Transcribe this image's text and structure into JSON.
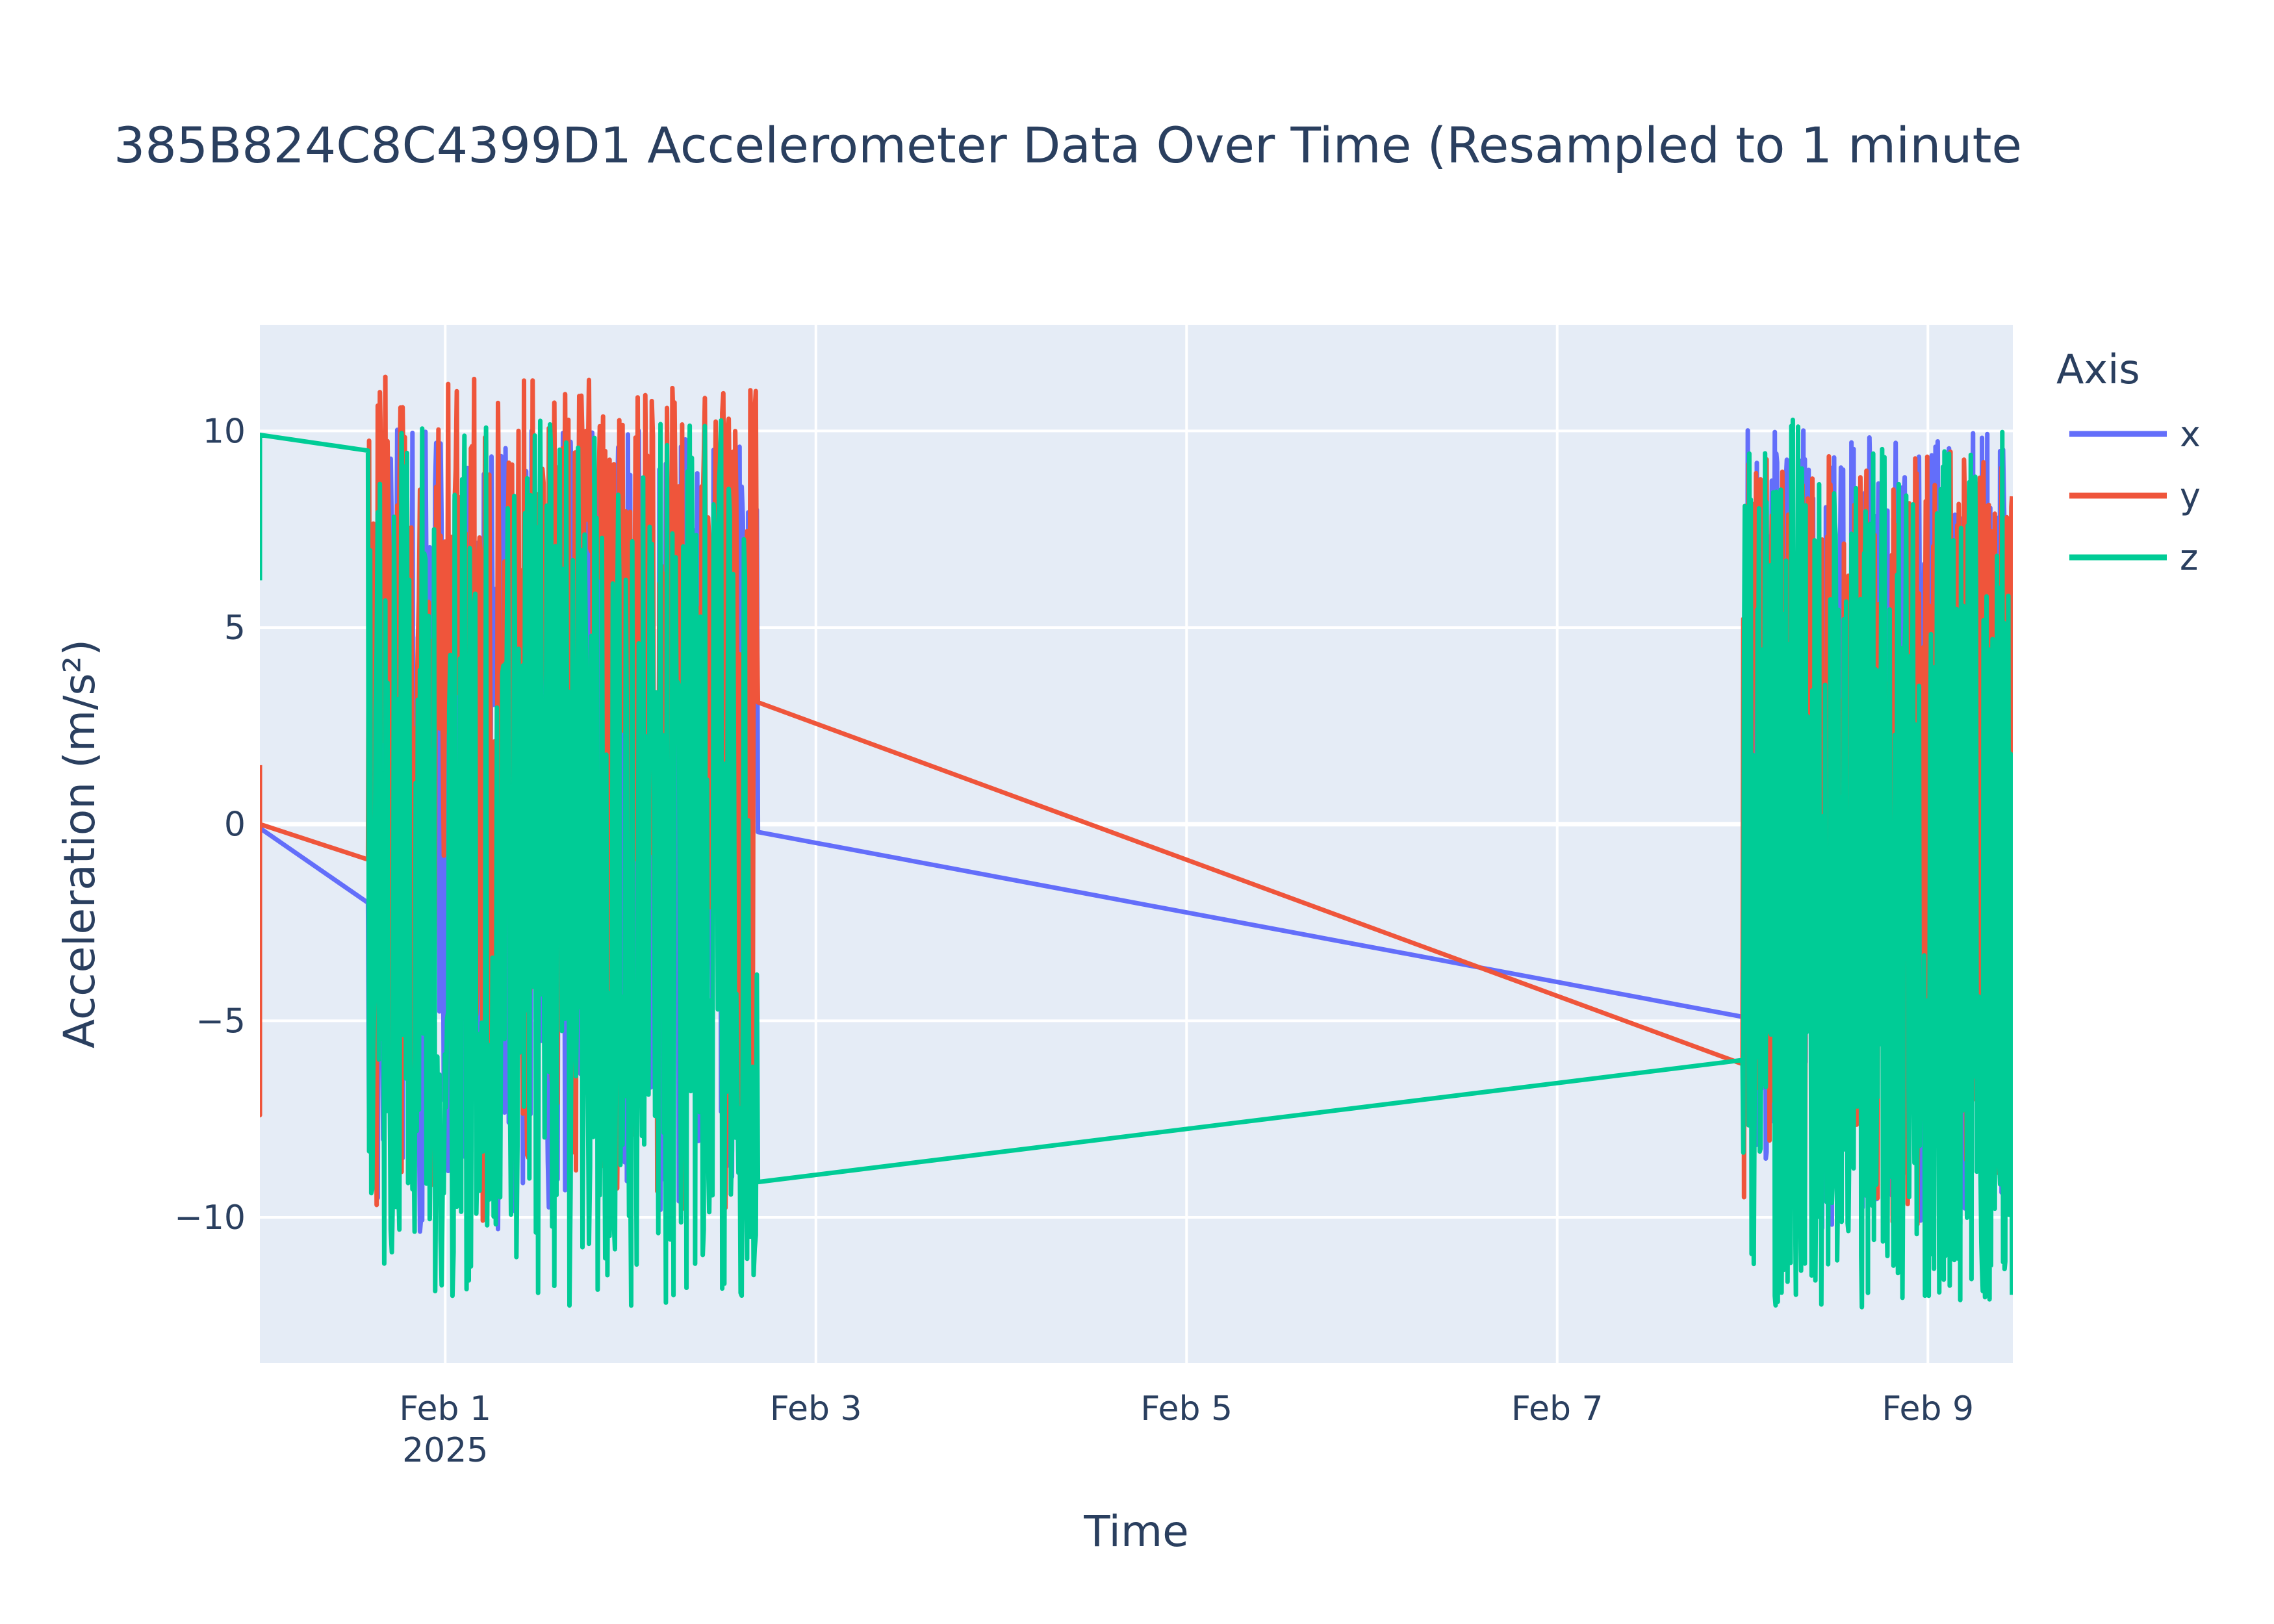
{
  "chart_data": {
    "type": "line",
    "title": "385B824C8C4399D1 Accelerometer Data Over Time (Resampled to 1 minute",
    "xlabel": "Time",
    "ylabel": "Acceleration (m/s²)",
    "x_axis_kind": "date",
    "xlim": [
      "2025-01-31T00:00",
      "2025-02-09T11:00"
    ],
    "ylim": [
      -13.7,
      12.7
    ],
    "grid": true,
    "x_ticks": [
      {
        "value": "2025-02-01T00:00",
        "label": "Feb 1",
        "sublabel": "2025"
      },
      {
        "value": "2025-02-03T00:00",
        "label": "Feb 3",
        "sublabel": ""
      },
      {
        "value": "2025-02-05T00:00",
        "label": "Feb 5",
        "sublabel": ""
      },
      {
        "value": "2025-02-07T00:00",
        "label": "Feb 7",
        "sublabel": ""
      },
      {
        "value": "2025-02-09T00:00",
        "label": "Feb 9",
        "sublabel": ""
      }
    ],
    "y_ticks": [
      {
        "value": 10,
        "label": "10"
      },
      {
        "value": 5,
        "label": "5"
      },
      {
        "value": 0,
        "label": "0"
      },
      {
        "value": -5,
        "label": "−5"
      },
      {
        "value": -10,
        "label": "−10"
      }
    ],
    "legend": {
      "title": "Axis",
      "position": "top-right"
    },
    "segments": [
      {
        "start": "2025-01-31T14:00",
        "end": "2025-02-02T16:30"
      },
      {
        "start": "2025-02-08T00:00",
        "end": "2025-02-09T11:00"
      }
    ],
    "series": [
      {
        "name": "x",
        "color": "#636efa",
        "start_values": [
          0.0,
          -0.1
        ],
        "burst_edges": [
          {
            "time": "2025-01-31T14:00",
            "value": -2.0
          },
          {
            "time": "2025-02-02T16:30",
            "value": -0.2
          },
          {
            "time": "2025-02-08T00:00",
            "value": -4.9
          }
        ],
        "burst_range": [
          -10.4,
          10.1
        ]
      },
      {
        "name": "y",
        "color": "#ef553b",
        "start_values": [
          1.5,
          -7.4,
          0.0
        ],
        "burst_edges": [
          {
            "time": "2025-01-31T14:00",
            "value": -0.9
          },
          {
            "time": "2025-02-02T16:30",
            "value": 3.1
          },
          {
            "time": "2025-02-08T00:00",
            "value": -6.1
          }
        ],
        "burst_range": [
          -10.3,
          11.4
        ]
      },
      {
        "name": "z",
        "color": "#00cc96",
        "start_values": [
          6.2,
          9.9
        ],
        "burst_edges": [
          {
            "time": "2025-01-31T14:00",
            "value": 9.5
          },
          {
            "time": "2025-02-02T16:30",
            "value": -9.1
          },
          {
            "time": "2025-02-08T00:00",
            "value": -6.0
          }
        ],
        "burst_range": [
          -12.3,
          10.3
        ]
      }
    ]
  }
}
